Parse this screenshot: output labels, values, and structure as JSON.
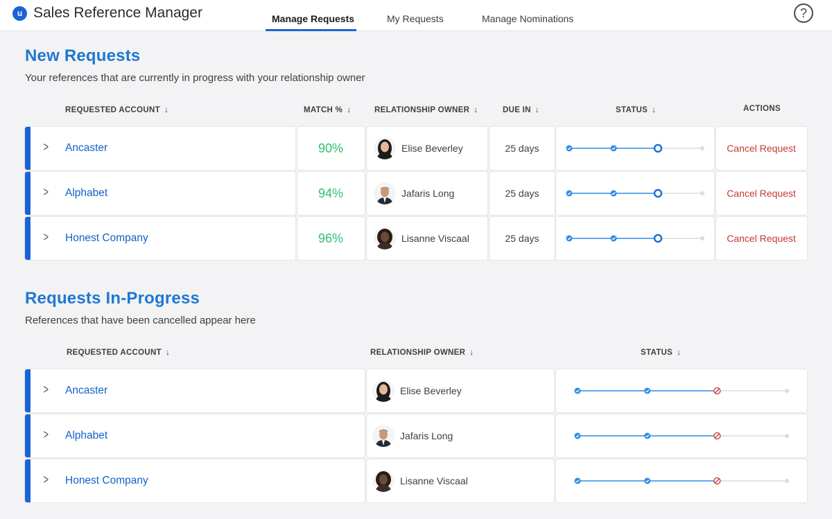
{
  "header": {
    "logo_letter": "u",
    "app_title": "Sales Reference Manager",
    "tabs": [
      {
        "label": "Manage Requests",
        "active": true
      },
      {
        "label": "My Requests",
        "active": false
      },
      {
        "label": "Manage Nominations",
        "active": false
      }
    ],
    "help_symbol": "?"
  },
  "colors": {
    "accent": "#1a63d8",
    "link": "#1262c7",
    "heading": "#1f78d1",
    "match": "#2fbf71",
    "cancel": "#c23934"
  },
  "new_requests": {
    "title": "New Requests",
    "subtitle": "Your references that are currently in progress with your relationship owner",
    "columns": {
      "account": "REQUESTED ACCOUNT",
      "match": "MATCH %",
      "owner": "RELATIONSHIP OWNER",
      "due": "DUE IN",
      "status": "STATUS",
      "actions": "ACTIONS"
    },
    "sort_icon": "↓",
    "rows": [
      {
        "account": "Ancaster",
        "match": "90%",
        "owner": "Elise Beverley",
        "due": "25 days",
        "action": "Cancel Request",
        "status_step": 3,
        "status_total": 4
      },
      {
        "account": "Alphabet",
        "match": "94%",
        "owner": "Jafaris Long",
        "due": "25 days",
        "action": "Cancel Request",
        "status_step": 3,
        "status_total": 4
      },
      {
        "account": "Honest Company",
        "match": "96%",
        "owner": "Lisanne Viscaal",
        "due": "25 days",
        "action": "Cancel Request",
        "status_step": 3,
        "status_total": 4
      }
    ]
  },
  "in_progress": {
    "title": "Requests In-Progress",
    "subtitle": "References that have been cancelled appear here",
    "columns": {
      "account": "REQUESTED ACCOUNT",
      "owner": "RELATIONSHIP OWNER",
      "status": "STATUS"
    },
    "sort_icon": "↓",
    "rows": [
      {
        "account": "Ancaster",
        "owner": "Elise Beverley",
        "status_step": 3,
        "status_total": 4,
        "status_state": "cancelled"
      },
      {
        "account": "Alphabet",
        "owner": "Jafaris Long",
        "status_step": 3,
        "status_total": 4,
        "status_state": "cancelled"
      },
      {
        "account": "Honest Company",
        "owner": "Lisanne Viscaal",
        "status_step": 3,
        "status_total": 4,
        "status_state": "cancelled"
      }
    ]
  }
}
